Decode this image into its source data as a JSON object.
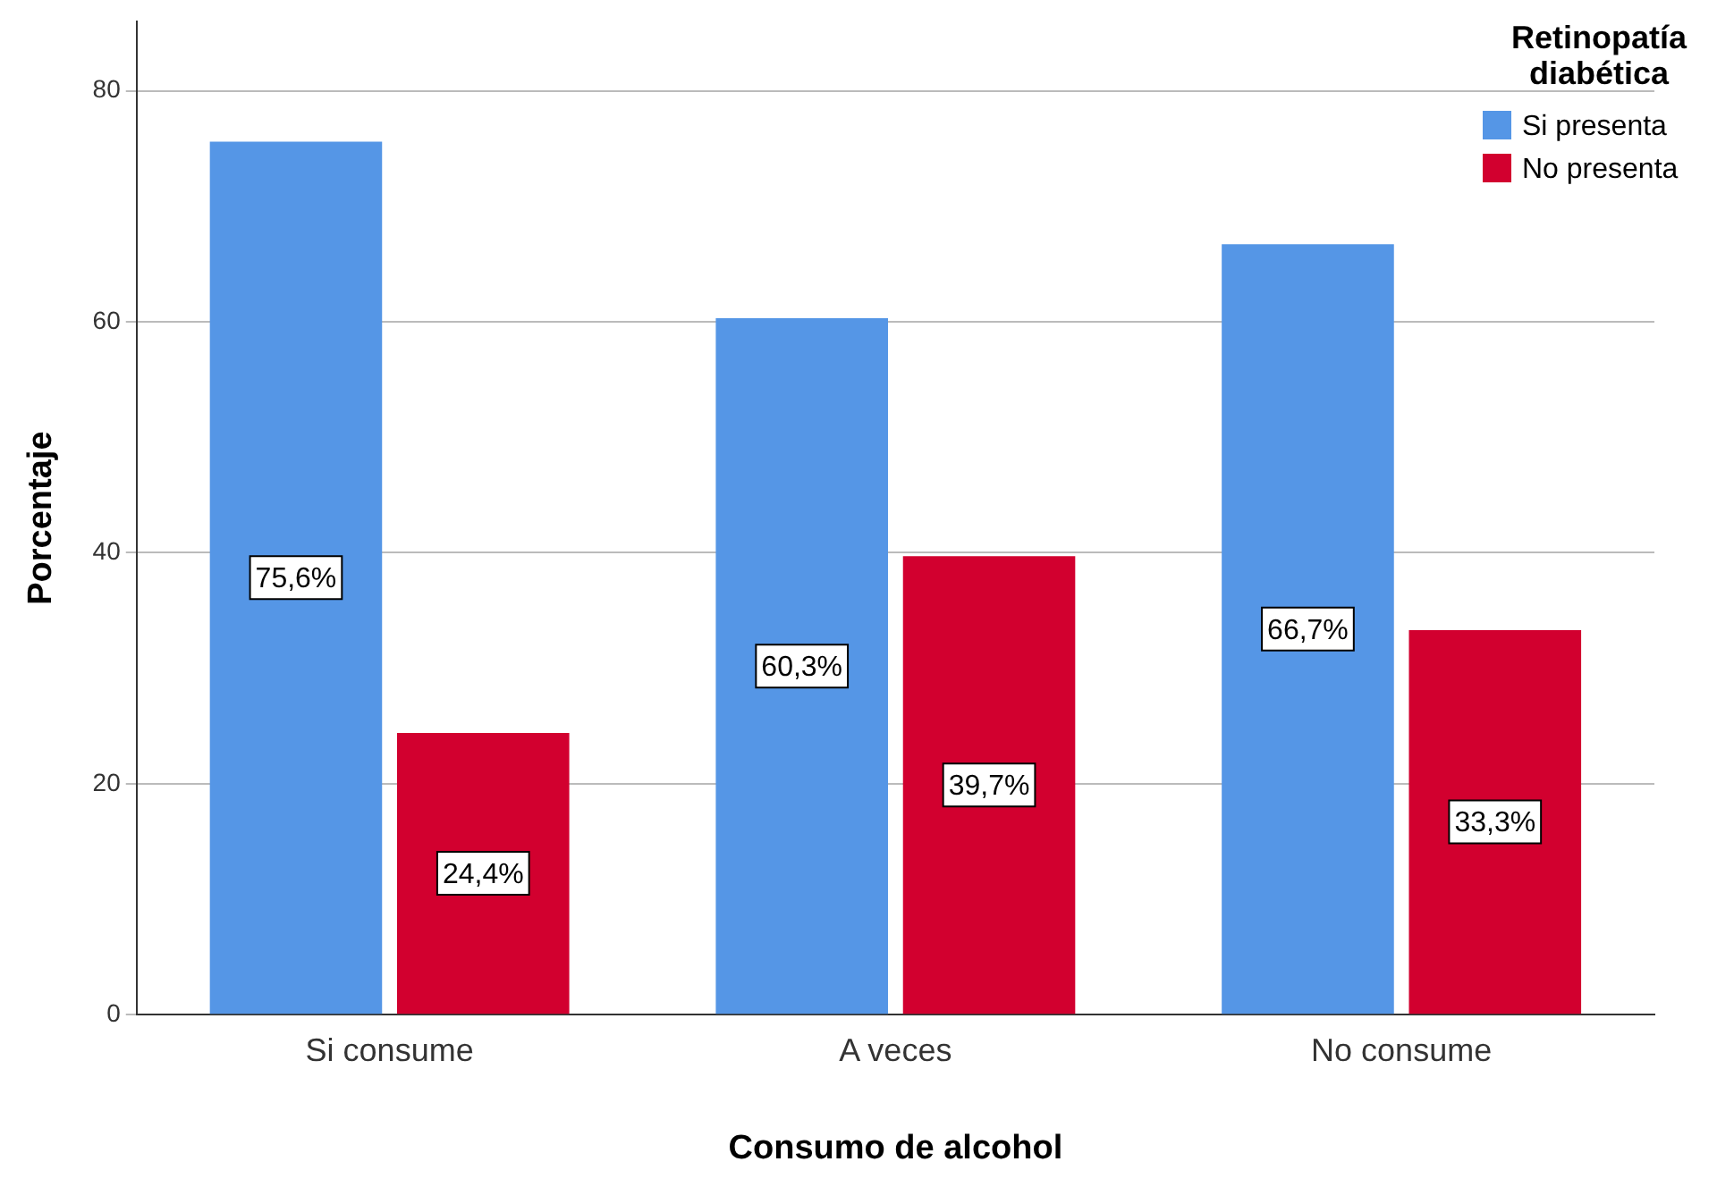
{
  "chart_data": {
    "type": "bar",
    "xlabel": "Consumo de alcohol",
    "ylabel": "Porcentaje",
    "legend_title": "Retinopatía diabética",
    "categories": [
      "Si consume",
      "A veces",
      "No consume"
    ],
    "series": [
      {
        "name": "Si presenta",
        "color": "#5596e6",
        "values": [
          75.6,
          60.3,
          66.7
        ],
        "value_labels": [
          "75,6%",
          "60,3%",
          "66,7%"
        ]
      },
      {
        "name": "No presenta",
        "color": "#d2002f",
        "values": [
          24.4,
          39.7,
          33.3
        ],
        "value_labels": [
          "24,4%",
          "39,7%",
          "33,3%"
        ]
      }
    ],
    "ylim": [
      0,
      86
    ],
    "yticks": [
      0,
      20,
      40,
      60,
      80
    ],
    "grid": "y",
    "legend": "top right"
  }
}
